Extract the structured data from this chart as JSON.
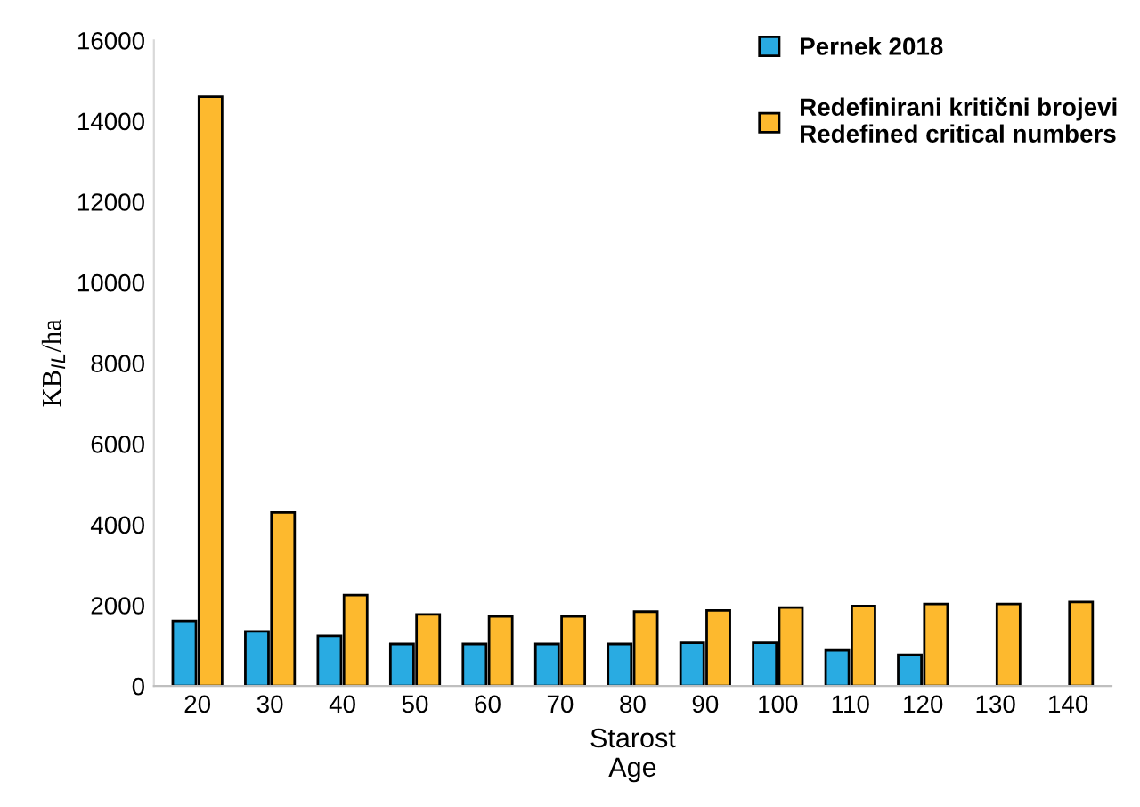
{
  "chart_data": {
    "type": "bar",
    "xlabel": "Starost\nAge",
    "ylabel": "KB$_{IL}$/ha",
    "categories": [
      "20",
      "30",
      "40",
      "50",
      "60",
      "70",
      "80",
      "90",
      "100",
      "110",
      "120",
      "130",
      "140"
    ],
    "series": [
      {
        "name": "Pernek 2018",
        "color": "#29abe2",
        "values": [
          1610,
          1350,
          1240,
          1040,
          1040,
          1040,
          1040,
          1070,
          1070,
          880,
          770,
          null,
          null
        ]
      },
      {
        "name": "Redefinirani kritični brojevi\nRedefined critical numbers",
        "color": "#fdb92e",
        "values": [
          14600,
          4300,
          2250,
          1770,
          1720,
          1720,
          1840,
          1870,
          1940,
          1980,
          2030,
          2030,
          2080
        ]
      }
    ],
    "ylim": [
      0,
      16000
    ],
    "yticks": [
      0,
      2000,
      4000,
      6000,
      8000,
      10000,
      12000,
      14000,
      16000
    ],
    "grid": false,
    "legend": "top right"
  }
}
